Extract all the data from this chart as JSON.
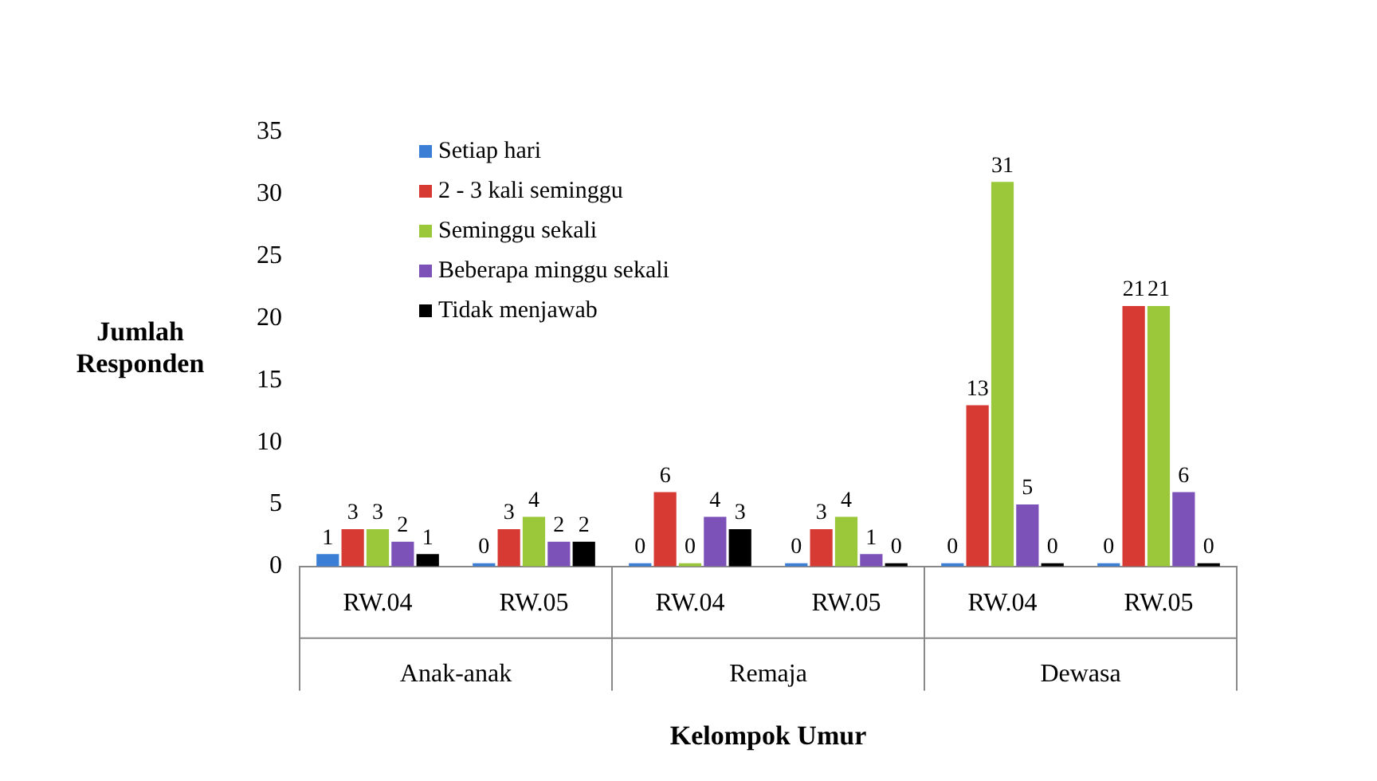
{
  "chart_data": {
    "type": "bar",
    "xlabel": "Kelompok Umur",
    "ylabel": "Jumlah Responden",
    "categories": [
      "RW.04",
      "RW.05",
      "RW.04",
      "RW.05",
      "RW.04",
      "RW.05"
    ],
    "annotations": [
      "Anak-anak",
      "Remaja",
      "Dewasa"
    ],
    "series": [
      {
        "name": "Setiap hari",
        "color": "#3a7fd5",
        "values": [
          1,
          0,
          0,
          0,
          0,
          0
        ]
      },
      {
        "name": "2 - 3 kali seminggu",
        "color": "#d63a33",
        "values": [
          3,
          3,
          6,
          3,
          13,
          21
        ]
      },
      {
        "name": "Seminggu sekali",
        "color": "#9bc83a",
        "values": [
          3,
          4,
          0,
          4,
          31,
          21
        ]
      },
      {
        "name": "Beberapa minggu sekali",
        "color": "#7d52b8",
        "values": [
          2,
          2,
          4,
          1,
          5,
          6
        ]
      },
      {
        "name": "Tidak menjawab",
        "color": "#000000",
        "values": [
          1,
          2,
          3,
          0,
          0,
          0
        ]
      }
    ],
    "ylim": [
      0,
      35
    ],
    "yticks": [
      0,
      5,
      10,
      15,
      20,
      25,
      30,
      35
    ],
    "grid": false,
    "legend": "top left",
    "data_labels": true
  }
}
